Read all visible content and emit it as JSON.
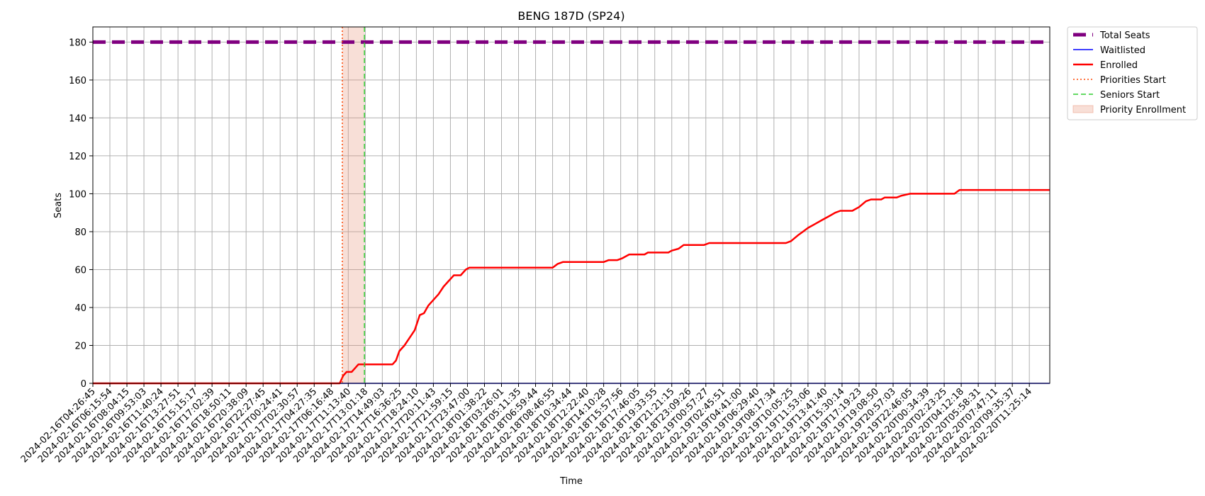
{
  "chart_data": {
    "type": "line",
    "title": "BENG 187D (SP24)",
    "xlabel": "Time",
    "ylabel": "Seats",
    "ylim": [
      0,
      188
    ],
    "yticks": [
      0,
      20,
      40,
      60,
      80,
      100,
      120,
      140,
      160,
      180
    ],
    "grid": true,
    "legend_position": "outside-top-right",
    "xticks": [
      "2024-02-16T04:26:45",
      "2024-02-16T06:15:54",
      "2024-02-16T08:04:15",
      "2024-02-16T09:53:03",
      "2024-02-16T11:40:24",
      "2024-02-16T13:27:51",
      "2024-02-16T15:15:17",
      "2024-02-16T17:02:39",
      "2024-02-16T18:50:11",
      "2024-02-16T20:38:09",
      "2024-02-16T22:27:45",
      "2024-02-17T00:24:41",
      "2024-02-17T02:30:57",
      "2024-02-17T04:27:35",
      "2024-02-17T06:16:48",
      "2024-02-17T11:13:40",
      "2024-02-17T13:01:18",
      "2024-02-17T14:49:03",
      "2024-02-17T16:36:25",
      "2024-02-17T18:24:10",
      "2024-02-17T20:11:43",
      "2024-02-17T21:59:15",
      "2024-02-17T23:47:00",
      "2024-02-18T01:38:22",
      "2024-02-18T03:26:01",
      "2024-02-18T05:11:35",
      "2024-02-18T06:59:44",
      "2024-02-18T08:46:55",
      "2024-02-18T10:34:44",
      "2024-02-18T12:22:40",
      "2024-02-18T14:10:28",
      "2024-02-18T15:57:56",
      "2024-02-18T17:46:05",
      "2024-02-18T19:33:55",
      "2024-02-18T21:21:15",
      "2024-02-18T23:09:26",
      "2024-02-19T00:57:27",
      "2024-02-19T02:45:51",
      "2024-02-19T04:41:00",
      "2024-02-19T06:29:40",
      "2024-02-19T08:17:34",
      "2024-02-19T10:05:25",
      "2024-02-19T11:53:06",
      "2024-02-19T13:41:40",
      "2024-02-19T15:30:14",
      "2024-02-19T17:19:23",
      "2024-02-19T19:08:50",
      "2024-02-19T20:57:03",
      "2024-02-19T22:46:05",
      "2024-02-20T00:34:39",
      "2024-02-20T02:23:25",
      "2024-02-20T04:12:18",
      "2024-02-20T05:58:31",
      "2024-02-20T07:47:11",
      "2024-02-20T09:35:37",
      "2024-02-20T11:25:14"
    ],
    "x_end": 56.2,
    "series": [
      {
        "name": "Total Seats",
        "style": "dashed-thick",
        "color": "#800080",
        "points": [
          [
            0,
            180
          ],
          [
            56.2,
            180
          ]
        ]
      },
      {
        "name": "Waitlisted",
        "style": "solid-thin",
        "color": "#0000ff",
        "points": [
          [
            0,
            0
          ],
          [
            56.2,
            0
          ]
        ]
      },
      {
        "name": "Enrolled",
        "style": "solid",
        "color": "#ff0000",
        "points": [
          [
            0,
            0
          ],
          [
            14.5,
            0
          ],
          [
            14.7,
            4
          ],
          [
            14.9,
            6
          ],
          [
            15.2,
            6
          ],
          [
            15.6,
            10
          ],
          [
            17.6,
            10
          ],
          [
            17.8,
            12
          ],
          [
            18.0,
            17
          ],
          [
            18.3,
            20
          ],
          [
            18.6,
            24
          ],
          [
            18.9,
            28
          ],
          [
            19.2,
            36
          ],
          [
            19.45,
            37
          ],
          [
            19.7,
            41
          ],
          [
            20.0,
            44
          ],
          [
            20.3,
            47
          ],
          [
            20.6,
            51
          ],
          [
            20.9,
            54
          ],
          [
            21.2,
            57
          ],
          [
            21.6,
            57
          ],
          [
            21.9,
            60
          ],
          [
            22.1,
            61
          ],
          [
            27.0,
            61
          ],
          [
            27.3,
            63
          ],
          [
            27.6,
            64
          ],
          [
            30.0,
            64
          ],
          [
            30.3,
            65
          ],
          [
            30.8,
            65
          ],
          [
            31.1,
            66
          ],
          [
            31.5,
            68
          ],
          [
            32.4,
            68
          ],
          [
            32.6,
            69
          ],
          [
            33.8,
            69
          ],
          [
            34.0,
            70
          ],
          [
            34.4,
            71
          ],
          [
            34.7,
            73
          ],
          [
            35.9,
            73
          ],
          [
            36.2,
            74
          ],
          [
            40.7,
            74
          ],
          [
            41.0,
            75
          ],
          [
            41.4,
            78
          ],
          [
            41.7,
            80
          ],
          [
            42.0,
            82
          ],
          [
            42.4,
            84
          ],
          [
            42.8,
            86
          ],
          [
            43.2,
            88
          ],
          [
            43.6,
            90
          ],
          [
            43.9,
            91
          ],
          [
            44.6,
            91
          ],
          [
            45.0,
            93
          ],
          [
            45.4,
            96
          ],
          [
            45.7,
            97
          ],
          [
            46.3,
            97
          ],
          [
            46.5,
            98
          ],
          [
            47.2,
            98
          ],
          [
            47.5,
            99
          ],
          [
            48.0,
            100
          ],
          [
            50.6,
            100
          ],
          [
            50.9,
            102
          ],
          [
            56.2,
            102
          ]
        ]
      }
    ],
    "vlines": [
      {
        "name": "Priorities Start",
        "x": 14.65,
        "color": "#ff4500",
        "style": "dotted"
      },
      {
        "name": "Seniors Start",
        "x": 15.95,
        "color": "#32cd32",
        "style": "dashed"
      }
    ],
    "spans": [
      {
        "name": "Priority Enrollment",
        "x0": 14.65,
        "x1": 15.95,
        "color": "#e9967a",
        "alpha": 0.3
      }
    ],
    "legend": [
      "Total Seats",
      "Waitlisted",
      "Enrolled",
      "Priorities Start",
      "Seniors Start",
      "Priority Enrollment"
    ]
  }
}
